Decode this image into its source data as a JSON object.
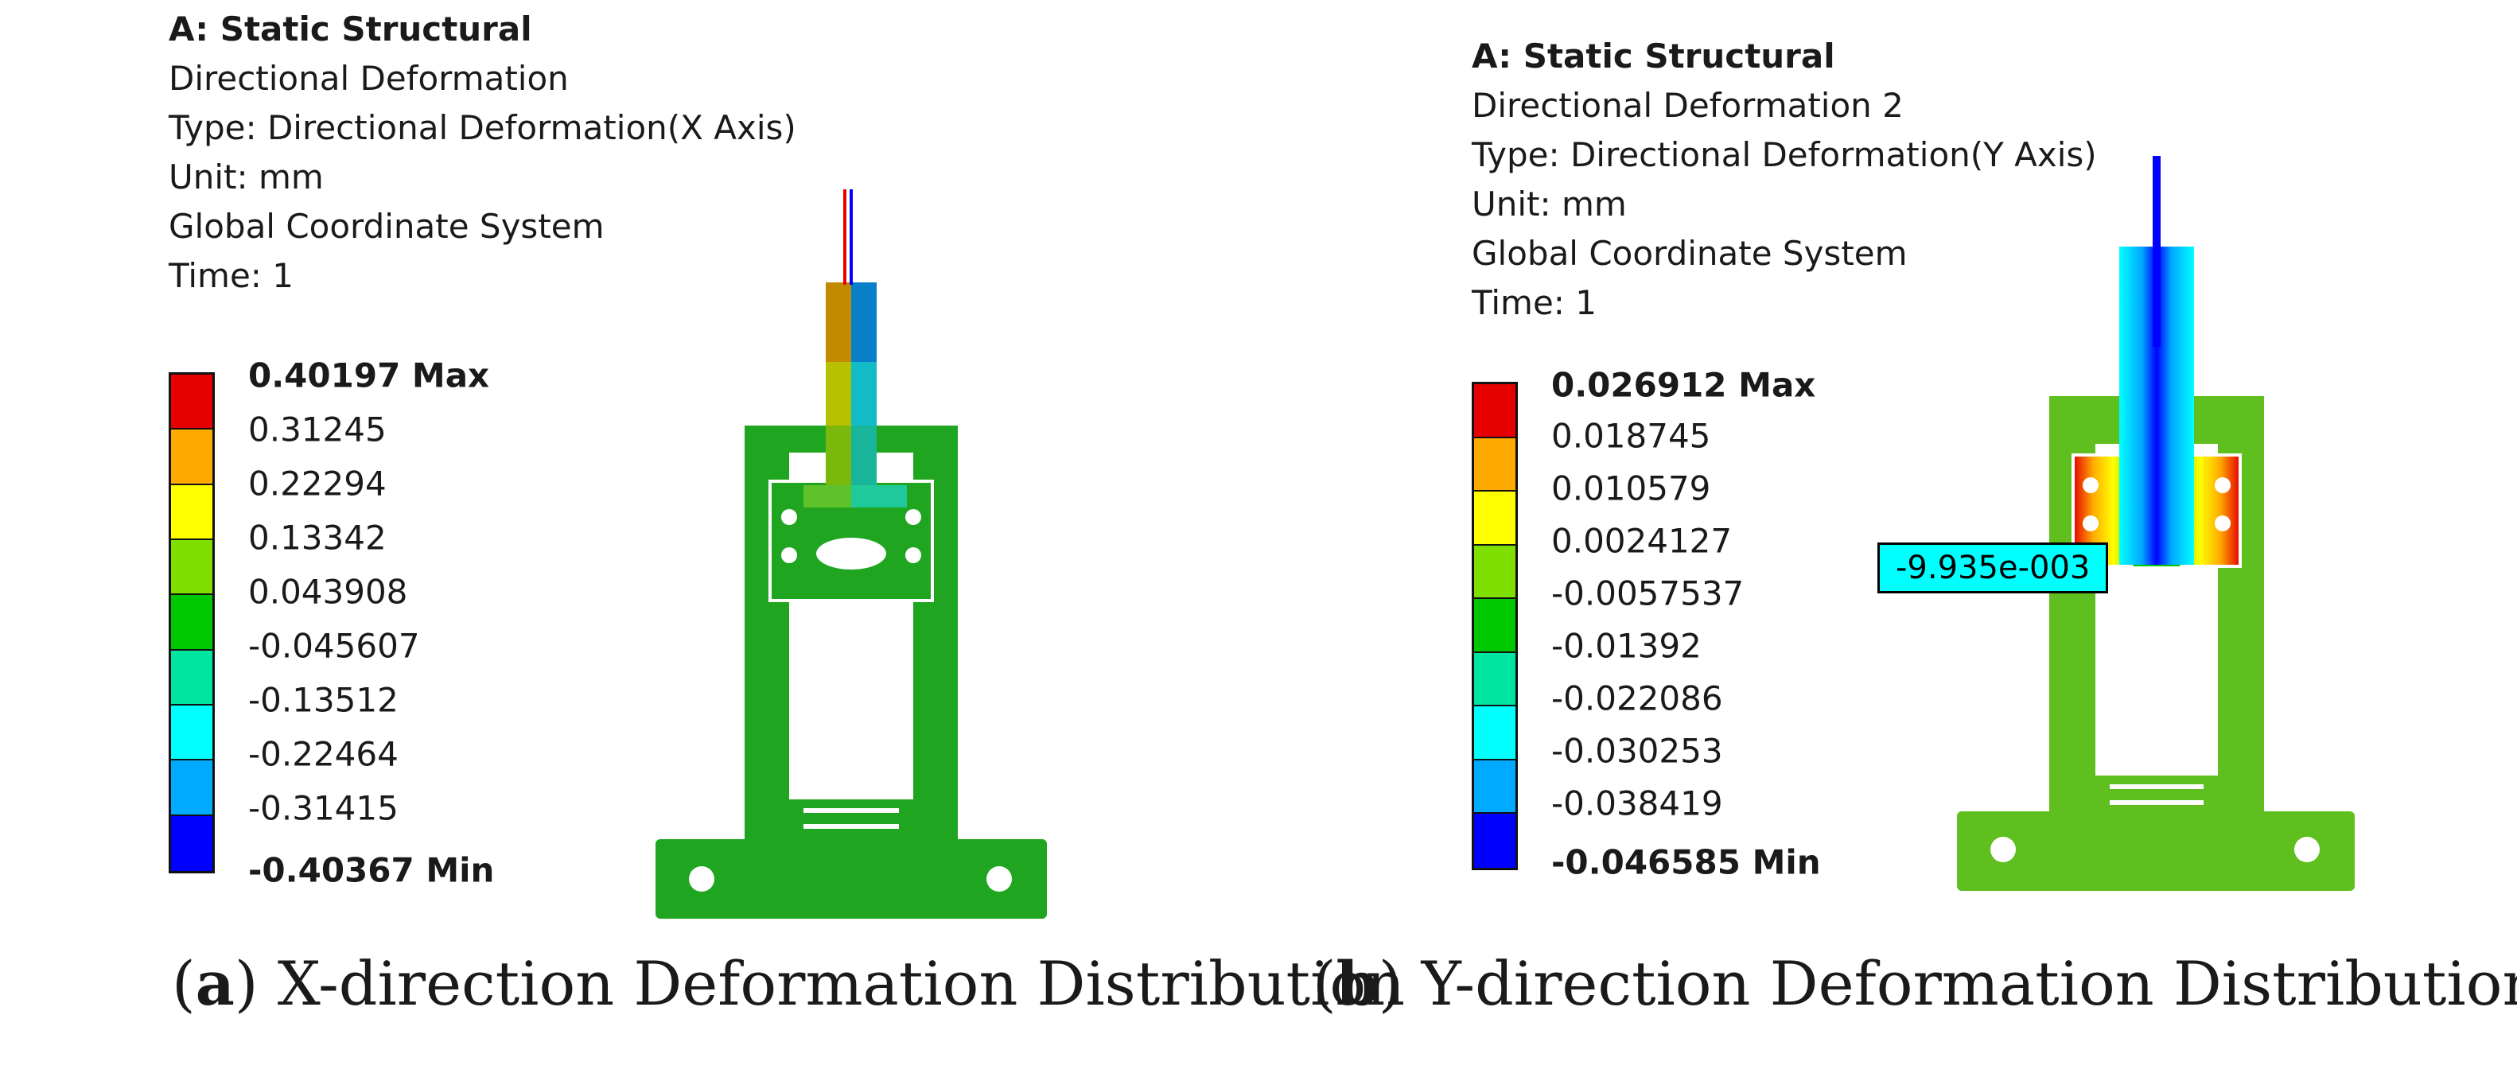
{
  "panel_a": {
    "header": {
      "title": "A: Static Structural",
      "result_name": "Directional Deformation",
      "type": "Type: Directional Deformation(X Axis)",
      "unit": "Unit: mm",
      "coordinate_system": "Global Coordinate System",
      "time": "Time: 1"
    },
    "legend": {
      "labels": [
        "0.40197 Max",
        "0.31245",
        "0.22294",
        "0.13342",
        "0.043908",
        "-0.045607",
        "-0.13512",
        "-0.22464",
        "-0.31415",
        "-0.40367 Min"
      ],
      "colors": [
        "#e60000",
        "#ffaa00",
        "#ffff00",
        "#7fdf00",
        "#00c800",
        "#00e6a0",
        "#00ffff",
        "#00aaff",
        "#0000ff"
      ]
    },
    "caption": {
      "letter": "a",
      "text": "X-direction Deformation Distribution"
    }
  },
  "panel_b": {
    "header": {
      "title": "A: Static Structural",
      "result_name": "Directional Deformation 2",
      "type": "Type: Directional Deformation(Y Axis)",
      "unit": "Unit: mm",
      "coordinate_system": "Global Coordinate System",
      "time": "Time: 1"
    },
    "legend": {
      "labels": [
        "0.026912 Max",
        "0.018745",
        "0.010579",
        "0.0024127",
        "-0.0057537",
        "-0.01392",
        "-0.022086",
        "-0.030253",
        "-0.038419",
        "-0.046585 Min"
      ],
      "colors": [
        "#e60000",
        "#ffaa00",
        "#ffff00",
        "#7fdf00",
        "#00c800",
        "#00e6a0",
        "#00ffff",
        "#00aaff",
        "#0000ff"
      ]
    },
    "probe": "-9.935e-003",
    "caption": {
      "letter": "b",
      "text": "Y-direction Deformation Distribution"
    }
  }
}
